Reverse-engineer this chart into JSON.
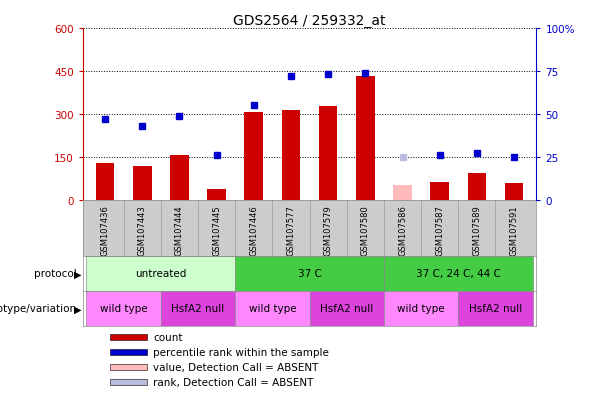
{
  "title": "GDS2564 / 259332_at",
  "samples": [
    "GSM107436",
    "GSM107443",
    "GSM107444",
    "GSM107445",
    "GSM107446",
    "GSM107577",
    "GSM107579",
    "GSM107580",
    "GSM107586",
    "GSM107587",
    "GSM107589",
    "GSM107591"
  ],
  "counts": [
    130,
    118,
    155,
    38,
    305,
    313,
    328,
    432,
    null,
    63,
    93,
    58
  ],
  "counts_absent": [
    null,
    null,
    null,
    null,
    null,
    null,
    null,
    null,
    52,
    null,
    null,
    null
  ],
  "percentile_ranks": [
    47,
    43,
    49,
    26,
    55,
    72,
    73,
    74,
    null,
    26,
    27,
    25
  ],
  "percentile_absent": [
    null,
    null,
    null,
    null,
    null,
    null,
    null,
    null,
    25,
    null,
    null,
    null
  ],
  "bar_color": "#cc0000",
  "bar_absent_color": "#ffbbbb",
  "dot_color": "#0000cc",
  "dot_absent_color": "#bbbbdd",
  "ylim_left": [
    0,
    600
  ],
  "ylim_right": [
    0,
    100
  ],
  "yticks_left": [
    0,
    150,
    300,
    450,
    600
  ],
  "yticks_right": [
    0,
    25,
    50,
    75,
    100
  ],
  "protocol_groups": [
    {
      "label": "untreated",
      "start": 0,
      "end": 4,
      "color": "#ccffcc"
    },
    {
      "label": "37 C",
      "start": 4,
      "end": 8,
      "color": "#44cc44"
    },
    {
      "label": "37 C, 24 C, 44 C",
      "start": 8,
      "end": 12,
      "color": "#44cc44"
    }
  ],
  "genotype_groups": [
    {
      "label": "wild type",
      "start": 0,
      "end": 2,
      "color": "#ff88ff"
    },
    {
      "label": "HsfA2 null",
      "start": 2,
      "end": 4,
      "color": "#dd44dd"
    },
    {
      "label": "wild type",
      "start": 4,
      "end": 6,
      "color": "#ff88ff"
    },
    {
      "label": "HsfA2 null",
      "start": 6,
      "end": 8,
      "color": "#dd44dd"
    },
    {
      "label": "wild type",
      "start": 8,
      "end": 10,
      "color": "#ff88ff"
    },
    {
      "label": "HsfA2 null",
      "start": 10,
      "end": 12,
      "color": "#dd44dd"
    }
  ],
  "protocol_label": "protocol",
  "genotype_label": "genotype/variation",
  "legend_items": [
    {
      "label": "count",
      "color": "#cc0000"
    },
    {
      "label": "percentile rank within the sample",
      "color": "#0000cc"
    },
    {
      "label": "value, Detection Call = ABSENT",
      "color": "#ffbbbb"
    },
    {
      "label": "rank, Detection Call = ABSENT",
      "color": "#bbbbdd"
    }
  ],
  "tick_color_left": "#cc0000",
  "tick_color_right": "#0000cc",
  "sample_bg_color": "#cccccc",
  "background_color": "#ffffff"
}
